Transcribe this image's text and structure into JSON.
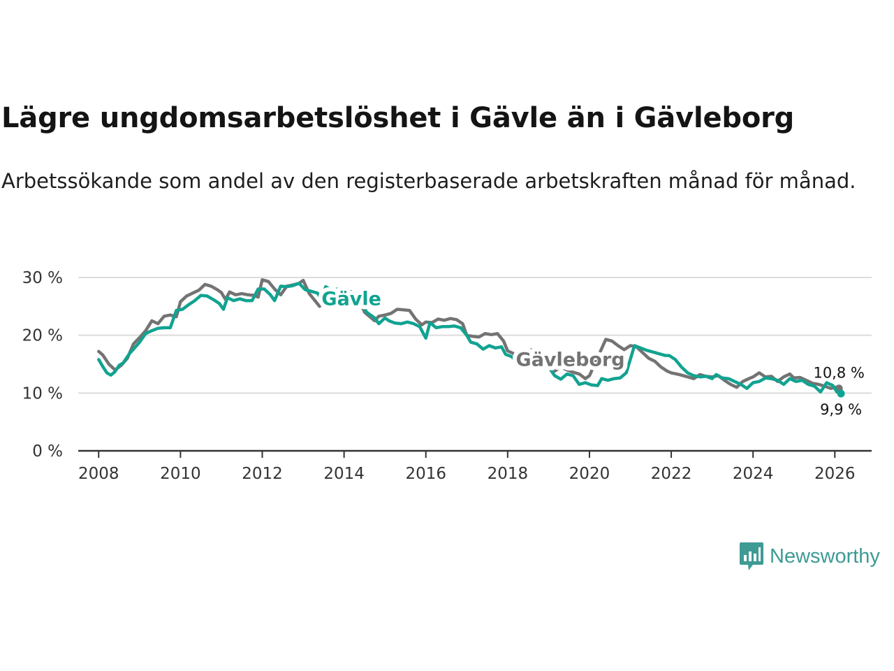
{
  "title": "Lägre ungdomsarbetslöshet i Gävle än i Gävleborg",
  "subtitle": "Arbetssökande som andel av den registerbaserade arbetskraften månad för månad.",
  "brand": {
    "name": "Newsworthy",
    "color": "#3e9b94",
    "icon": "newsworthy-logo-icon"
  },
  "chart_data": {
    "type": "line",
    "title": "Lägre ungdomsarbetslöshet i Gävle än i Gävleborg",
    "xlabel": "",
    "ylabel": "",
    "xlim": [
      2007.5,
      2026.9
    ],
    "ylim": [
      0,
      30
    ],
    "grid": true,
    "x_ticks": [
      2008,
      2010,
      2012,
      2014,
      2016,
      2018,
      2020,
      2022,
      2024,
      2026
    ],
    "x_tick_labels": [
      "2008",
      "2010",
      "2012",
      "2014",
      "2016",
      "2018",
      "2020",
      "2022",
      "2024",
      "2026"
    ],
    "y_ticks": [
      0,
      10,
      20,
      30
    ],
    "y_tick_labels": [
      "0 %",
      "10 %",
      "20 %",
      "30 %"
    ],
    "series": [
      {
        "name": "Gävleborg",
        "color": "#737373",
        "end_label": "10,8 %",
        "points": [
          [
            2008.0,
            17.2
          ],
          [
            2008.1,
            16.6
          ],
          [
            2008.25,
            15.0
          ],
          [
            2008.4,
            14.0
          ],
          [
            2008.55,
            14.8
          ],
          [
            2008.7,
            16.0
          ],
          [
            2008.85,
            18.5
          ],
          [
            2009.0,
            19.6
          ],
          [
            2009.15,
            20.8
          ],
          [
            2009.3,
            22.5
          ],
          [
            2009.45,
            22.0
          ],
          [
            2009.6,
            23.3
          ],
          [
            2009.75,
            23.5
          ],
          [
            2009.9,
            23.2
          ],
          [
            2010.0,
            25.8
          ],
          [
            2010.15,
            26.8
          ],
          [
            2010.3,
            27.3
          ],
          [
            2010.45,
            27.8
          ],
          [
            2010.6,
            28.8
          ],
          [
            2010.75,
            28.5
          ],
          [
            2010.9,
            27.9
          ],
          [
            2011.0,
            27.4
          ],
          [
            2011.1,
            26.2
          ],
          [
            2011.2,
            27.5
          ],
          [
            2011.35,
            27.0
          ],
          [
            2011.5,
            27.2
          ],
          [
            2011.65,
            27.0
          ],
          [
            2011.8,
            26.9
          ],
          [
            2011.9,
            26.6
          ],
          [
            2012.0,
            29.6
          ],
          [
            2012.15,
            29.3
          ],
          [
            2012.3,
            28.0
          ],
          [
            2012.45,
            27.0
          ],
          [
            2012.6,
            28.5
          ],
          [
            2012.75,
            28.7
          ],
          [
            2012.9,
            29.0
          ],
          [
            2013.0,
            29.5
          ],
          [
            2013.15,
            27.2
          ],
          [
            2013.3,
            25.9
          ],
          [
            2013.4,
            25.0
          ],
          [
            2013.5,
            26.0
          ],
          [
            2013.6,
            25.8
          ],
          [
            2013.75,
            26.8
          ],
          [
            2013.9,
            27.5
          ],
          [
            2014.0,
            27.8
          ],
          [
            2014.15,
            27.2
          ],
          [
            2014.3,
            26.4
          ],
          [
            2014.45,
            24.8
          ],
          [
            2014.5,
            24.0
          ],
          [
            2014.75,
            22.5
          ],
          [
            2014.85,
            23.3
          ],
          [
            2015.0,
            23.5
          ],
          [
            2015.15,
            23.8
          ],
          [
            2015.3,
            24.5
          ],
          [
            2015.45,
            24.4
          ],
          [
            2015.6,
            24.3
          ],
          [
            2015.75,
            22.8
          ],
          [
            2015.9,
            21.8
          ],
          [
            2016.0,
            22.3
          ],
          [
            2016.15,
            22.2
          ],
          [
            2016.3,
            22.8
          ],
          [
            2016.45,
            22.6
          ],
          [
            2016.6,
            22.9
          ],
          [
            2016.75,
            22.7
          ],
          [
            2016.9,
            22.0
          ],
          [
            2017.0,
            20.0
          ],
          [
            2017.15,
            19.8
          ],
          [
            2017.3,
            19.7
          ],
          [
            2017.45,
            20.3
          ],
          [
            2017.6,
            20.1
          ],
          [
            2017.75,
            20.3
          ],
          [
            2017.9,
            19.0
          ],
          [
            2018.0,
            17.3
          ],
          [
            2018.15,
            16.8
          ],
          [
            2018.3,
            16.9
          ],
          [
            2018.45,
            17.2
          ],
          [
            2018.6,
            17.5
          ],
          [
            2018.75,
            17.3
          ],
          [
            2018.9,
            16.0
          ],
          [
            2019.0,
            15.0
          ],
          [
            2019.15,
            13.8
          ],
          [
            2019.3,
            14.5
          ],
          [
            2019.45,
            14.0
          ],
          [
            2019.6,
            13.6
          ],
          [
            2019.75,
            13.3
          ],
          [
            2019.9,
            12.5
          ],
          [
            2020.0,
            13.0
          ],
          [
            2020.4,
            19.3
          ],
          [
            2020.55,
            19.0
          ],
          [
            2020.7,
            18.2
          ],
          [
            2020.85,
            17.5
          ],
          [
            2021.0,
            18.2
          ],
          [
            2021.15,
            18.0
          ],
          [
            2021.3,
            17.0
          ],
          [
            2021.45,
            16.0
          ],
          [
            2021.6,
            15.5
          ],
          [
            2021.75,
            14.5
          ],
          [
            2021.9,
            13.8
          ],
          [
            2022.0,
            13.5
          ],
          [
            2022.2,
            13.2
          ],
          [
            2022.4,
            12.8
          ],
          [
            2022.55,
            12.5
          ],
          [
            2022.7,
            13.2
          ],
          [
            2022.85,
            12.9
          ],
          [
            2023.0,
            12.8
          ],
          [
            2023.15,
            13.0
          ],
          [
            2023.3,
            12.2
          ],
          [
            2023.45,
            11.5
          ],
          [
            2023.6,
            11.0
          ],
          [
            2023.75,
            12.0
          ],
          [
            2023.9,
            12.5
          ],
          [
            2024.0,
            12.8
          ],
          [
            2024.15,
            13.5
          ],
          [
            2024.3,
            12.8
          ],
          [
            2024.45,
            12.9
          ],
          [
            2024.6,
            12.0
          ],
          [
            2024.75,
            12.8
          ],
          [
            2024.9,
            13.3
          ],
          [
            2025.0,
            12.6
          ],
          [
            2025.15,
            12.7
          ],
          [
            2025.3,
            12.2
          ],
          [
            2025.45,
            11.7
          ],
          [
            2025.6,
            11.5
          ],
          [
            2025.75,
            11.2
          ],
          [
            2025.9,
            10.8
          ],
          [
            2026.0,
            11.0
          ],
          [
            2026.1,
            10.8
          ]
        ]
      },
      {
        "name": "Gävle",
        "color": "#11a391",
        "end_label": "9,9 %",
        "points": [
          [
            2008.0,
            15.8
          ],
          [
            2008.1,
            14.6
          ],
          [
            2008.2,
            13.5
          ],
          [
            2008.3,
            13.1
          ],
          [
            2008.4,
            13.7
          ],
          [
            2008.5,
            14.8
          ],
          [
            2008.6,
            15.2
          ],
          [
            2008.75,
            16.8
          ],
          [
            2008.9,
            18.0
          ],
          [
            2009.0,
            18.8
          ],
          [
            2009.15,
            20.3
          ],
          [
            2009.3,
            20.8
          ],
          [
            2009.45,
            21.2
          ],
          [
            2009.6,
            21.3
          ],
          [
            2009.75,
            21.3
          ],
          [
            2009.9,
            24.3
          ],
          [
            2010.05,
            24.5
          ],
          [
            2010.2,
            25.3
          ],
          [
            2010.35,
            26.0
          ],
          [
            2010.5,
            26.9
          ],
          [
            2010.65,
            26.8
          ],
          [
            2010.8,
            26.2
          ],
          [
            2010.95,
            25.5
          ],
          [
            2011.05,
            24.5
          ],
          [
            2011.15,
            26.5
          ],
          [
            2011.3,
            26.0
          ],
          [
            2011.45,
            26.3
          ],
          [
            2011.6,
            26.0
          ],
          [
            2011.75,
            26.0
          ],
          [
            2011.9,
            28.0
          ],
          [
            2012.05,
            28.0
          ],
          [
            2012.2,
            27.0
          ],
          [
            2012.3,
            26.0
          ],
          [
            2012.45,
            28.5
          ],
          [
            2012.6,
            28.4
          ],
          [
            2012.75,
            28.6
          ],
          [
            2012.9,
            29.0
          ],
          [
            2013.05,
            27.9
          ],
          [
            2013.2,
            27.6
          ],
          [
            2013.35,
            27.3
          ],
          [
            2013.45,
            26.2
          ],
          [
            2013.55,
            28.4
          ],
          [
            2013.7,
            27.8
          ],
          [
            2013.85,
            28.0
          ],
          [
            2014.0,
            27.8
          ],
          [
            2014.15,
            27.6
          ],
          [
            2014.3,
            27.0
          ],
          [
            2014.45,
            25.5
          ],
          [
            2014.55,
            24.0
          ],
          [
            2014.75,
            23.0
          ],
          [
            2014.85,
            22.0
          ],
          [
            2015.0,
            23.0
          ],
          [
            2015.1,
            22.5
          ],
          [
            2015.25,
            22.1
          ],
          [
            2015.4,
            22.0
          ],
          [
            2015.55,
            22.3
          ],
          [
            2015.7,
            22.0
          ],
          [
            2015.85,
            21.5
          ],
          [
            2016.0,
            19.5
          ],
          [
            2016.1,
            22.2
          ],
          [
            2016.25,
            21.3
          ],
          [
            2016.4,
            21.5
          ],
          [
            2016.55,
            21.5
          ],
          [
            2016.7,
            21.6
          ],
          [
            2016.85,
            21.3
          ],
          [
            2017.0,
            20.0
          ],
          [
            2017.1,
            18.8
          ],
          [
            2017.25,
            18.5
          ],
          [
            2017.4,
            17.6
          ],
          [
            2017.55,
            18.2
          ],
          [
            2017.7,
            17.8
          ],
          [
            2017.85,
            18.0
          ],
          [
            2017.95,
            16.7
          ],
          [
            2018.1,
            16.3
          ],
          [
            2018.25,
            15.2
          ],
          [
            2018.4,
            16.0
          ],
          [
            2018.55,
            16.2
          ],
          [
            2018.7,
            16.2
          ],
          [
            2018.85,
            16.2
          ],
          [
            2019.0,
            14.5
          ],
          [
            2019.15,
            13.0
          ],
          [
            2019.3,
            12.4
          ],
          [
            2019.45,
            13.3
          ],
          [
            2019.6,
            13.0
          ],
          [
            2019.75,
            11.5
          ],
          [
            2019.9,
            11.8
          ],
          [
            2020.05,
            11.4
          ],
          [
            2020.2,
            11.3
          ],
          [
            2020.3,
            12.5
          ],
          [
            2020.45,
            12.2
          ],
          [
            2020.6,
            12.5
          ],
          [
            2020.75,
            12.6
          ],
          [
            2020.9,
            13.5
          ],
          [
            2021.1,
            18.2
          ],
          [
            2021.25,
            17.8
          ],
          [
            2021.4,
            17.4
          ],
          [
            2021.55,
            17.1
          ],
          [
            2021.7,
            16.8
          ],
          [
            2021.85,
            16.5
          ],
          [
            2021.95,
            16.5
          ],
          [
            2022.1,
            15.8
          ],
          [
            2022.25,
            14.5
          ],
          [
            2022.4,
            13.5
          ],
          [
            2022.55,
            13.0
          ],
          [
            2022.7,
            12.8
          ],
          [
            2022.85,
            12.9
          ],
          [
            2023.0,
            12.5
          ],
          [
            2023.1,
            13.2
          ],
          [
            2023.25,
            12.6
          ],
          [
            2023.4,
            12.5
          ],
          [
            2023.55,
            12.0
          ],
          [
            2023.7,
            11.5
          ],
          [
            2023.85,
            10.8
          ],
          [
            2024.0,
            11.8
          ],
          [
            2024.15,
            12.0
          ],
          [
            2024.3,
            12.6
          ],
          [
            2024.45,
            12.5
          ],
          [
            2024.6,
            12.2
          ],
          [
            2024.75,
            11.5
          ],
          [
            2024.9,
            12.5
          ],
          [
            2025.05,
            12.0
          ],
          [
            2025.2,
            12.2
          ],
          [
            2025.35,
            11.5
          ],
          [
            2025.5,
            11.2
          ],
          [
            2025.65,
            10.2
          ],
          [
            2025.8,
            11.8
          ],
          [
            2025.95,
            11.3
          ],
          [
            2026.05,
            10.2
          ],
          [
            2026.15,
            9.9
          ]
        ]
      }
    ]
  }
}
